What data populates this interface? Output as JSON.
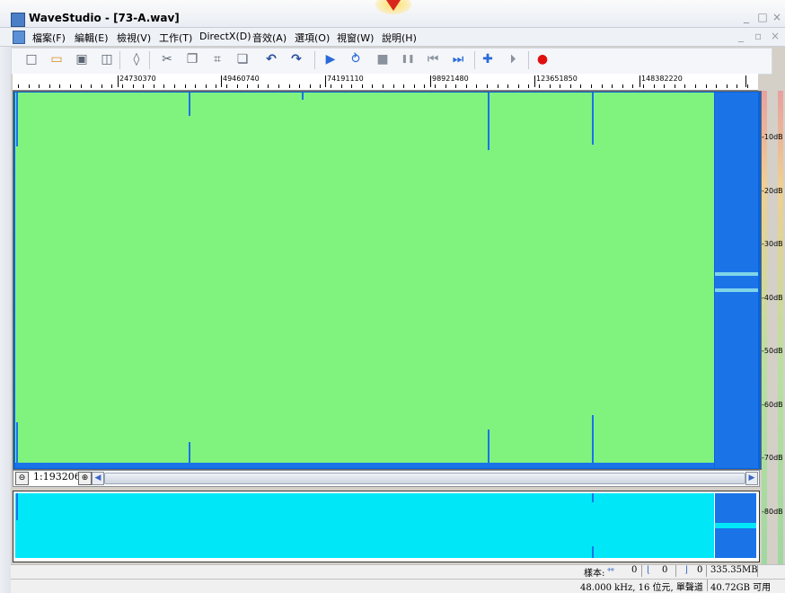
{
  "window": {
    "title": "WaveStudio - [73-A.wav]",
    "minimize_glyph": "_",
    "restore_glyph": "□",
    "close_glyph": "×",
    "mdi_minimize_glyph": "_",
    "mdi_restore_glyph": "▫",
    "mdi_close_glyph": "×"
  },
  "menu": {
    "items": [
      {
        "label": "檔案(F)"
      },
      {
        "label": "編輯(E)"
      },
      {
        "label": "檢視(V)"
      },
      {
        "label": "工作(T)"
      },
      {
        "label": "DirectX(D)"
      },
      {
        "label": "音效(A)"
      },
      {
        "label": "選項(O)"
      },
      {
        "label": "視窗(W)"
      },
      {
        "label": "說明(H)"
      }
    ]
  },
  "toolbar": {
    "buttons": [
      {
        "icon": "new-file-icon",
        "glyph": "□"
      },
      {
        "icon": "open-folder-icon",
        "glyph": "▭"
      },
      {
        "icon": "save-icon",
        "glyph": "▣"
      },
      {
        "icon": "save-all-icon",
        "glyph": "◫"
      },
      {
        "icon": "properties-icon",
        "glyph": "◊"
      },
      {
        "icon": "cut-icon",
        "glyph": "✂"
      },
      {
        "icon": "copy-icon",
        "glyph": "❐"
      },
      {
        "icon": "crop-icon",
        "glyph": "⌗"
      },
      {
        "icon": "paste-icon",
        "glyph": "❏"
      },
      {
        "icon": "undo-icon",
        "glyph": "↶"
      },
      {
        "icon": "redo-icon",
        "glyph": "↷"
      },
      {
        "icon": "play-icon",
        "glyph": "▶"
      },
      {
        "icon": "play-loop-icon",
        "glyph": "⥁"
      },
      {
        "icon": "stop-icon",
        "glyph": "■"
      },
      {
        "icon": "pause-icon",
        "glyph": "❚❚"
      },
      {
        "icon": "skip-start-icon",
        "glyph": "⏮"
      },
      {
        "icon": "skip-end-icon",
        "glyph": "⏭"
      },
      {
        "icon": "marker-icon",
        "glyph": "✚"
      },
      {
        "icon": "next-marker-icon",
        "glyph": "⏵"
      },
      {
        "icon": "record-icon",
        "glyph": "●"
      }
    ],
    "accent_play": "#2a6ad8",
    "accent_record": "#e01010"
  },
  "ruler": {
    "labels": [
      "24730370",
      "49460740",
      "74191110",
      "98921480",
      "123651850",
      "148382220"
    ]
  },
  "level_meter": {
    "labels": [
      "-10dB",
      "-20dB",
      "-30dB",
      "-40dB",
      "-50dB",
      "-60dB",
      "-70dB",
      "-80dB"
    ]
  },
  "scroll": {
    "zoom_ratio": "1:193206",
    "zoom_out_glyph": "⊖",
    "zoom_in_glyph": "⊕",
    "left_glyph": "◀",
    "right_glyph": "▶"
  },
  "status": {
    "sample_label": "樣本:",
    "length_value": "0",
    "start_value": "0",
    "end_value": "0",
    "file_size": "335.35MB",
    "format": "48.000 kHz, 16 位元, 單聲道",
    "free_space": "40.72GB 可用"
  },
  "colors": {
    "waveform_main": "#80f27e",
    "waveform_bg": "#1a74e8",
    "overview": "#00e8f8"
  }
}
